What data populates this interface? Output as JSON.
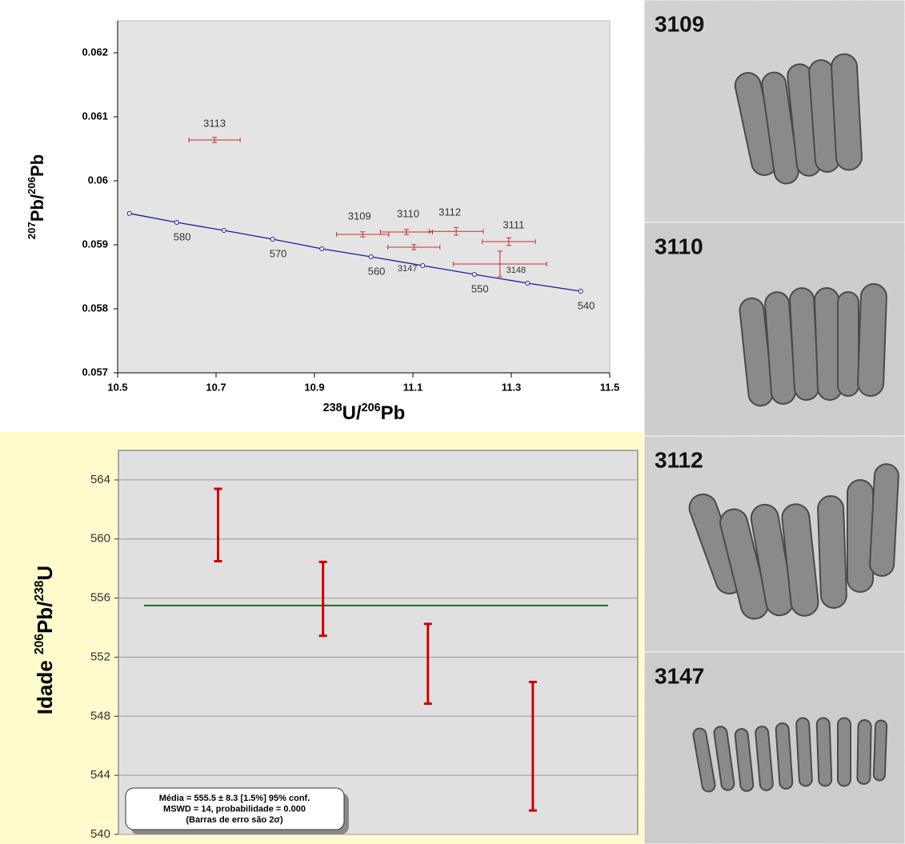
{
  "chart_data": [
    {
      "type": "concordia",
      "x_label_parts": [
        "238",
        "U/",
        "206",
        "Pb"
      ],
      "y_label_parts": [
        "207",
        "Pb/",
        "206",
        "Pb"
      ],
      "xlim": [
        10.5,
        11.5
      ],
      "ylim": [
        0.057,
        0.0625
      ],
      "xticks": [
        10.5,
        10.7,
        10.9,
        11.1,
        11.3,
        11.5
      ],
      "yticks": [
        0.057,
        0.058,
        0.059,
        0.06,
        0.061,
        0.062
      ],
      "concordia": {
        "color": "#1c1c9c",
        "x": [
          10.524,
          10.62,
          10.716,
          10.815,
          10.915,
          11.015,
          11.12,
          11.225,
          11.333,
          11.441
        ],
        "y": [
          0.05949,
          0.05935,
          0.059225,
          0.059088,
          0.058938,
          0.058813,
          0.058675,
          0.058538,
          0.0584,
          0.058275
        ],
        "labels": [
          null,
          "580",
          null,
          "570",
          null,
          "560",
          null,
          "550",
          null,
          "540"
        ]
      },
      "points": {
        "color": "#c0302a",
        "labels": [
          "3113",
          "3109",
          "3110",
          "3112",
          "3111",
          "3147",
          "3148"
        ],
        "x": [
          10.697,
          10.998,
          11.087,
          11.188,
          11.295,
          11.102,
          11.277
        ],
        "x_err": [
          0.052,
          0.053,
          0.053,
          0.055,
          0.054,
          0.053,
          0.095
        ],
        "y": [
          0.060638,
          0.059163,
          0.0592,
          0.05921,
          0.05905,
          0.058963,
          0.0587
        ],
        "y_err": [
          4e-05,
          4e-05,
          4e-05,
          6e-05,
          6e-05,
          4e-05,
          0.0002
        ]
      }
    },
    {
      "type": "errorbar",
      "y_label_parts": [
        "Idade ",
        "206",
        "Pb/",
        "238",
        "U"
      ],
      "xlim": [
        0.05,
        5
      ],
      "ylim": [
        540,
        566
      ],
      "yticks": [
        540,
        544,
        548,
        552,
        556,
        560,
        564
      ],
      "grid": true,
      "x": [
        1,
        2,
        3,
        4
      ],
      "values": [
        560.95,
        555.95,
        551.55,
        545.97
      ],
      "errors": [
        2.45,
        2.5,
        2.7,
        4.35
      ],
      "color": "#cc0000",
      "mean": 555.5,
      "mean_color": "#1e6b1e",
      "annotation": [
        "Média = 555.5 ± 8.3  [1.5%]  95% conf.",
        "MSWD = 14, probabilidade = 0.000",
        "(Barras de erro são 2σ)"
      ]
    }
  ],
  "images": [
    {
      "label": "3109"
    },
    {
      "label": "3110"
    },
    {
      "label": "3112"
    },
    {
      "label": "3147"
    }
  ]
}
